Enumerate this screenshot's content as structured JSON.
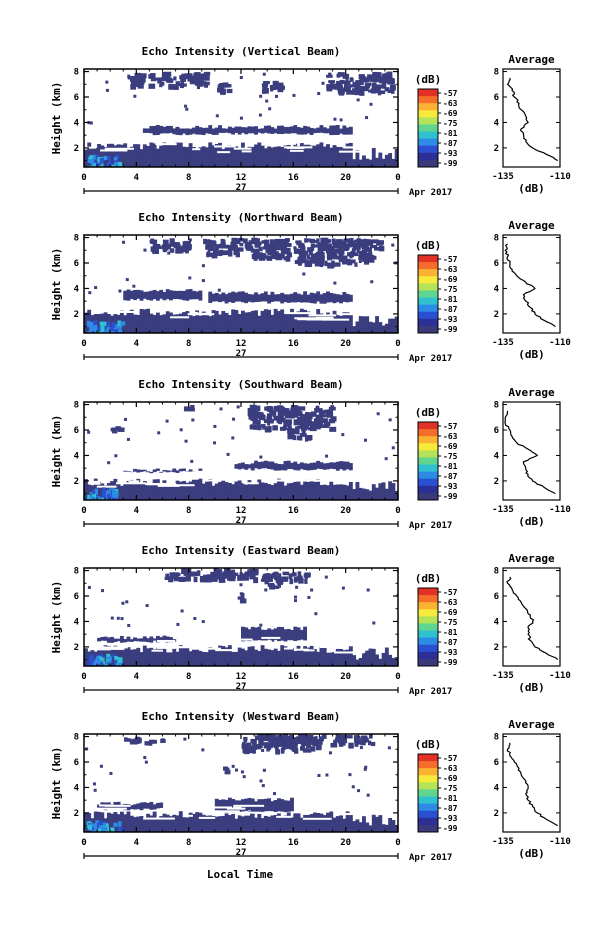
{
  "figure": {
    "xlabel": "Local Time",
    "date_label": "Apr 2017",
    "day_label": "27",
    "colorbar_unit": "(dB)",
    "colorbar_ticks": [
      "-57",
      "-63",
      "-69",
      "-75",
      "-81",
      "-87",
      "-93",
      "-99"
    ],
    "colorbar_colors": [
      "#e23226",
      "#f46d2b",
      "#fbb232",
      "#f6ea3c",
      "#b4e35a",
      "#5fd58f",
      "#2fc1d0",
      "#2d8be6",
      "#2a4fd1",
      "#2b2f96",
      "#3a3a7a"
    ],
    "panel_background": "#ffffff",
    "echo_color": "#3a3d7e"
  },
  "chart_data": [
    {
      "type": "heatmap",
      "title": "Echo Intensity (Vertical Beam)",
      "xlabel": "",
      "ylabel": "Height (km)",
      "x_ticks": [
        "0",
        "4",
        "8",
        "12",
        "16",
        "20",
        "0"
      ],
      "y_ticks": [
        "2",
        "4",
        "6",
        "8"
      ],
      "xlim": [
        0,
        24
      ],
      "ylim": [
        0.5,
        8.2
      ],
      "avg": {
        "title": "Average",
        "xlabel": "(dB)",
        "x_ticks": [
          "-135",
          "-110"
        ],
        "xlim": [
          -135,
          -110
        ],
        "y_ticks": [
          "2",
          "4",
          "6",
          "8"
        ],
        "height": [
          1.0,
          1.5,
          2.0,
          2.5,
          3.0,
          3.5,
          4.0,
          4.5,
          5.0,
          5.5,
          6.0,
          6.5,
          7.0,
          7.5
        ],
        "db": [
          -111,
          -116,
          -122,
          -125,
          -126,
          -127,
          -124,
          -125,
          -127,
          -128,
          -130,
          -131,
          -133,
          -132
        ]
      }
    },
    {
      "type": "heatmap",
      "title": "Echo Intensity (Northward Beam)",
      "xlabel": "",
      "ylabel": "Height (km)",
      "x_ticks": [
        "0",
        "4",
        "8",
        "12",
        "16",
        "20",
        "0"
      ],
      "y_ticks": [
        "2",
        "4",
        "6",
        "8"
      ],
      "xlim": [
        0,
        24
      ],
      "ylim": [
        0.5,
        8.2
      ],
      "avg": {
        "title": "Average",
        "xlabel": "(dB)",
        "x_ticks": [
          "-135",
          "-110"
        ],
        "xlim": [
          -135,
          -110
        ],
        "y_ticks": [
          "2",
          "4",
          "6",
          "8"
        ],
        "height": [
          1.0,
          1.5,
          2.0,
          2.5,
          3.0,
          3.5,
          4.0,
          4.5,
          5.0,
          5.5,
          6.0,
          6.5,
          7.0,
          7.5
        ],
        "db": [
          -112,
          -117,
          -121,
          -123,
          -125,
          -126,
          -121,
          -125,
          -129,
          -131,
          -132,
          -133,
          -134,
          -133
        ]
      }
    },
    {
      "type": "heatmap",
      "title": "Echo Intensity (Southward Beam)",
      "xlabel": "",
      "ylabel": "Height (km)",
      "x_ticks": [
        "0",
        "4",
        "8",
        "12",
        "16",
        "20",
        "0"
      ],
      "y_ticks": [
        "2",
        "4",
        "6",
        "8"
      ],
      "xlim": [
        0,
        24
      ],
      "ylim": [
        0.5,
        8.2
      ],
      "avg": {
        "title": "Average",
        "xlabel": "(dB)",
        "x_ticks": [
          "-135",
          "-110"
        ],
        "xlim": [
          -135,
          -110
        ],
        "y_ticks": [
          "2",
          "4",
          "6",
          "8"
        ],
        "height": [
          1.0,
          1.5,
          2.0,
          2.5,
          3.0,
          3.5,
          4.0,
          4.5,
          5.0,
          5.5,
          6.0,
          6.5,
          7.0,
          7.5
        ],
        "db": [
          -112,
          -117,
          -122,
          -124,
          -125,
          -126,
          -120,
          -124,
          -129,
          -131,
          -132,
          -134,
          -134,
          -133
        ]
      }
    },
    {
      "type": "heatmap",
      "title": "Echo Intensity (Eastward Beam)",
      "xlabel": "",
      "ylabel": "Height (km)",
      "x_ticks": [
        "0",
        "4",
        "8",
        "12",
        "16",
        "20",
        "0"
      ],
      "y_ticks": [
        "2",
        "4",
        "6",
        "8"
      ],
      "xlim": [
        0,
        24
      ],
      "ylim": [
        0.5,
        8.2
      ],
      "avg": {
        "title": "Average",
        "xlabel": "(dB)",
        "x_ticks": [
          "-135",
          "-110"
        ],
        "xlim": [
          -135,
          -110
        ],
        "y_ticks": [
          "2",
          "4",
          "6",
          "8"
        ],
        "height": [
          1.0,
          1.5,
          2.0,
          2.5,
          3.0,
          3.5,
          4.0,
          4.5,
          5.0,
          5.5,
          6.0,
          6.5,
          7.0,
          7.5
        ],
        "db": [
          -111,
          -116,
          -121,
          -123,
          -124,
          -124,
          -122,
          -123,
          -125,
          -127,
          -129,
          -131,
          -133,
          -132
        ]
      }
    },
    {
      "type": "heatmap",
      "title": "Echo Intensity (Westward Beam)",
      "xlabel": "",
      "ylabel": "Height (km)",
      "x_ticks": [
        "0",
        "4",
        "8",
        "12",
        "16",
        "20",
        "0"
      ],
      "y_ticks": [
        "2",
        "4",
        "6",
        "8"
      ],
      "xlim": [
        0,
        24
      ],
      "ylim": [
        0.5,
        8.2
      ],
      "avg": {
        "title": "Average",
        "xlabel": "(dB)",
        "x_ticks": [
          "-135",
          "-110"
        ],
        "xlim": [
          -135,
          -110
        ],
        "y_ticks": [
          "2",
          "4",
          "6",
          "8"
        ],
        "height": [
          1.0,
          1.5,
          2.0,
          2.5,
          3.0,
          3.5,
          4.0,
          4.5,
          5.0,
          5.5,
          6.0,
          6.5,
          7.0,
          7.5
        ],
        "db": [
          -111,
          -116,
          -120,
          -122,
          -124,
          -125,
          -124,
          -125,
          -127,
          -128,
          -130,
          -132,
          -133,
          -132
        ]
      }
    }
  ]
}
